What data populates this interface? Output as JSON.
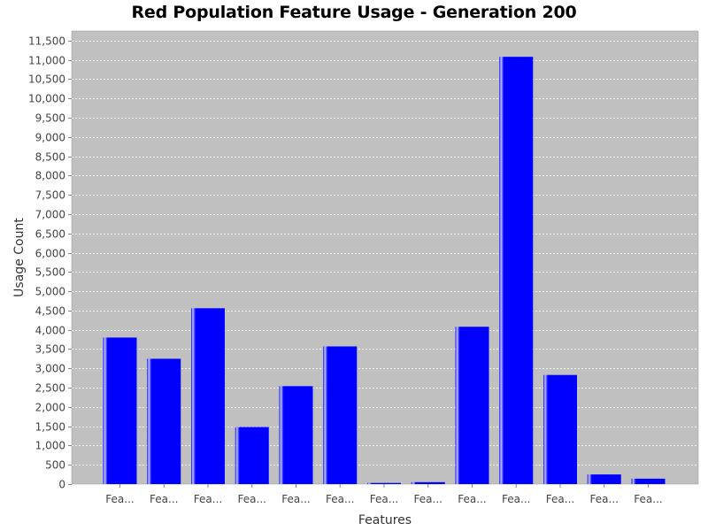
{
  "chart_data": {
    "type": "bar",
    "title": "Red Population Feature Usage - Generation 200",
    "xlabel": "Features",
    "ylabel": "Usage Count",
    "ylim": [
      0,
      11750
    ],
    "ytick_step": 500,
    "grid": true,
    "legend": "none",
    "categories": [
      "Fea...",
      "Fea...",
      "Fea...",
      "Fea...",
      "Fea...",
      "Fea...",
      "Fea...",
      "Fea...",
      "Fea...",
      "Fea...",
      "Fea...",
      "Fea...",
      "Fea..."
    ],
    "values": [
      3800,
      3250,
      4560,
      1480,
      2540,
      3570,
      30,
      50,
      4080,
      11080,
      2830,
      250,
      140
    ],
    "colors": {
      "bar": "#0000ff",
      "bar_highlight": "#c8c8ff",
      "plot_background": "#c0c0c0",
      "gridline": "#ffffff"
    }
  }
}
